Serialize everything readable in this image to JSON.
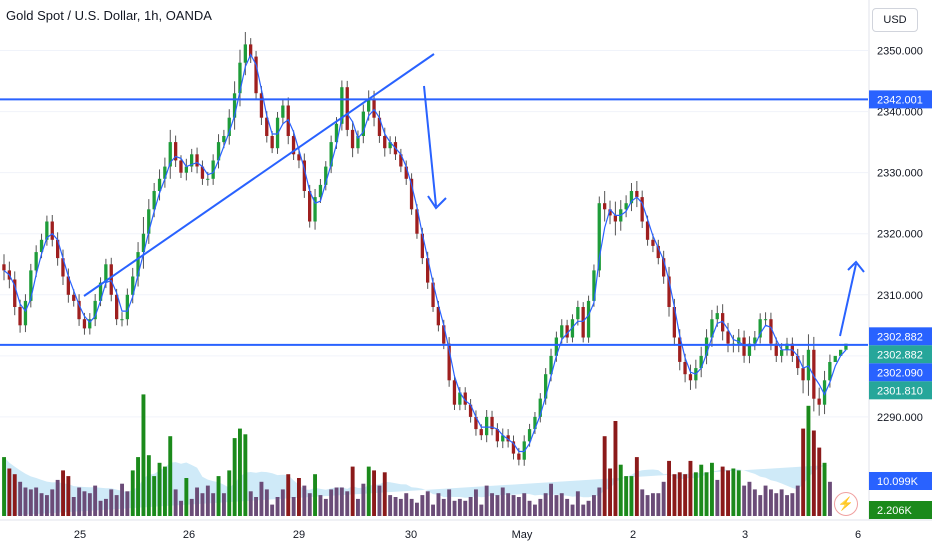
{
  "chart": {
    "title": "Gold Spot / U.S. Dollar, 1h, OANDA",
    "currency": "USD",
    "flash_icon": "lightning-icon",
    "colors": {
      "up": "#26a69a",
      "down": "#ef5350",
      "drawing": "#2962ff",
      "vol_up": "#1b8a1b",
      "vol_down": "#8b1a1a",
      "vol_neutral": "#6b4c78",
      "vol_ma": "#bfe3f5"
    },
    "horizontal_lines": [
      2342.001,
      2301.81
    ],
    "price_labels": [
      {
        "text": "2342.001",
        "price": 2342.001,
        "color": "#2962ff"
      },
      {
        "text": "2302.882",
        "price": 2303.2,
        "color": "#2962ff"
      },
      {
        "text": "2302.882",
        "price": 2302.882,
        "color": "#26a69a"
      },
      {
        "text": "2302.090",
        "price": 2302.09,
        "color": "#2962ff"
      },
      {
        "text": "2301.810",
        "price": 2301.81,
        "color": "#26a69a"
      }
    ],
    "volume_labels": [
      {
        "text": "10.099K",
        "color": "#2962ff"
      },
      {
        "text": "2.206K",
        "color": "#1b8a1b"
      }
    ]
  },
  "chart_data": {
    "type": "candlestick",
    "y_axis": {
      "min": 2280,
      "max": 2355,
      "ticks": [
        "2290.000",
        "2300.000",
        "2310.000",
        "2320.000",
        "2330.000",
        "2340.000",
        "2350.000"
      ],
      "tick_values": [
        2290,
        2300,
        2310,
        2320,
        2330,
        2340,
        2350
      ]
    },
    "x_axis": {
      "ticks": [
        "25",
        "26",
        "29",
        "30",
        "May",
        "2",
        "3",
        "6"
      ]
    },
    "series": [
      {
        "name": "close",
        "values": [
          2314.0,
          2312.5,
          2308.0,
          2305.0,
          2309.0,
          2314.0,
          2317.0,
          2319.0,
          2322.0,
          2319.0,
          2316.0,
          2313.0,
          2310.0,
          2309.0,
          2306.0,
          2304.5,
          2306.0,
          2309.0,
          2312.0,
          2315.0,
          2310.0,
          2306.0,
          2306.0,
          2310.0,
          2313.0,
          2317.0,
          2320.0,
          2324.0,
          2327.0,
          2329.0,
          2331.0,
          2335.0,
          2332.0,
          2330.0,
          2331.0,
          2333.0,
          2331.0,
          2329.0,
          2329.0,
          2332.0,
          2335.0,
          2336.0,
          2339.0,
          2343.0,
          2348.0,
          2351.0,
          2349.0,
          2343.0,
          2339.0,
          2336.0,
          2334.0,
          2339.0,
          2341.0,
          2336.0,
          2333.0,
          2332.0,
          2327.0,
          2322.0,
          2326.0,
          2328.0,
          2331.0,
          2335.0,
          2338.0,
          2344.0,
          2337.0,
          2334.0,
          2336.0,
          2340.0,
          2342.0,
          2339.0,
          2336.0,
          2334.0,
          2335.0,
          2333.0,
          2331.0,
          2329.0,
          2324.0,
          2320.0,
          2316.0,
          2312.0,
          2308.0,
          2305.0,
          2302.0,
          2296.0,
          2292.0,
          2294.0,
          2292.0,
          2290.0,
          2288.0,
          2287.0,
          2290.0,
          2288.0,
          2286.0,
          2287.0,
          2286.0,
          2284.0,
          2283.0,
          2286.0,
          2288.0,
          2290.0,
          2293.0,
          2297.0,
          2300.0,
          2303.0,
          2305.0,
          2303.0,
          2306.0,
          2308.0,
          2303.0,
          2309.0,
          2314.0,
          2325.0,
          2324.0,
          2323.0,
          2322.0,
          2324.0,
          2325.0,
          2327.0,
          2326.0,
          2322.0,
          2319.0,
          2318.0,
          2316.0,
          2313.0,
          2308.0,
          2303.0,
          2299.0,
          2297.0,
          2296.0,
          2298.0,
          2300.0,
          2303.0,
          2306.0,
          2307.0,
          2304.0,
          2302.0,
          2302.0,
          2303.0,
          2300.0,
          2302.0,
          2303.0,
          2306.0,
          2306.0,
          2302.0,
          2300.0,
          2301.0,
          2302.0,
          2300.0,
          2298.0,
          2296.0,
          2301.0,
          2293.0,
          2292.0,
          2296.0,
          2299.0,
          2300.0,
          2301.0,
          2302.0
        ]
      }
    ],
    "volume": [
      31.0,
      25.0,
      22.0,
      18.0,
      15.0,
      14.0,
      15.0,
      12.0,
      11.0,
      14.0,
      19.0,
      24.0,
      21.0,
      10.0,
      15.0,
      13.0,
      12.0,
      16.0,
      8.0,
      9.0,
      14.0,
      11.0,
      17.0,
      13.0,
      24.0,
      31.0,
      64.0,
      32.0,
      21.0,
      28.0,
      26.0,
      42.0,
      14.0,
      8.0,
      20.0,
      9.0,
      15.0,
      12.0,
      16.0,
      12.0,
      21.0,
      12.0,
      24.0,
      41.0,
      46.0,
      43.0,
      13.0,
      10.0,
      18.0,
      14.0,
      6.0,
      10.0,
      14.0,
      22.0,
      10.0,
      20.0,
      16.0,
      12.0,
      22.0,
      11.0,
      9.0,
      14.0,
      15.0,
      15.0,
      13.0,
      26.0,
      9.0,
      17.0,
      26.0,
      24.0,
      16.0,
      23.0,
      11.0,
      10.0,
      9.0,
      12.0,
      9.0,
      7.0,
      11.0,
      13.0,
      6.0,
      12.0,
      9.0,
      14.0,
      8.0,
      9.0,
      8.0,
      10.0,
      14.0,
      6.0,
      16.0,
      12.0,
      11.0,
      15.0,
      12.0,
      11.0,
      10.0,
      12.0,
      8.0,
      6.0,
      9.0,
      12.0,
      17.0,
      11.0,
      12.0,
      9.0,
      6.0,
      13.0,
      6.0,
      8.0,
      11.0,
      15.0,
      42.0,
      25.0,
      50.0,
      27.0,
      21.0,
      21.0,
      31.0,
      14.0,
      11.0,
      12.0,
      12.0,
      18.0,
      29.0,
      22.0,
      23.0,
      22.0,
      29.0,
      23.0,
      27.0,
      23.0,
      28.0,
      19.0,
      26.0,
      24.0,
      25.0,
      24.0,
      16.0,
      18.0,
      14.0,
      11.0,
      16.0,
      14.0,
      12.0,
      14.0,
      11.0,
      12.0,
      16.0,
      46.0,
      58.0,
      45.0,
      36.0,
      28.0,
      18.0
    ],
    "title": "Gold Spot / U.S. Dollar, 1h, OANDA"
  }
}
